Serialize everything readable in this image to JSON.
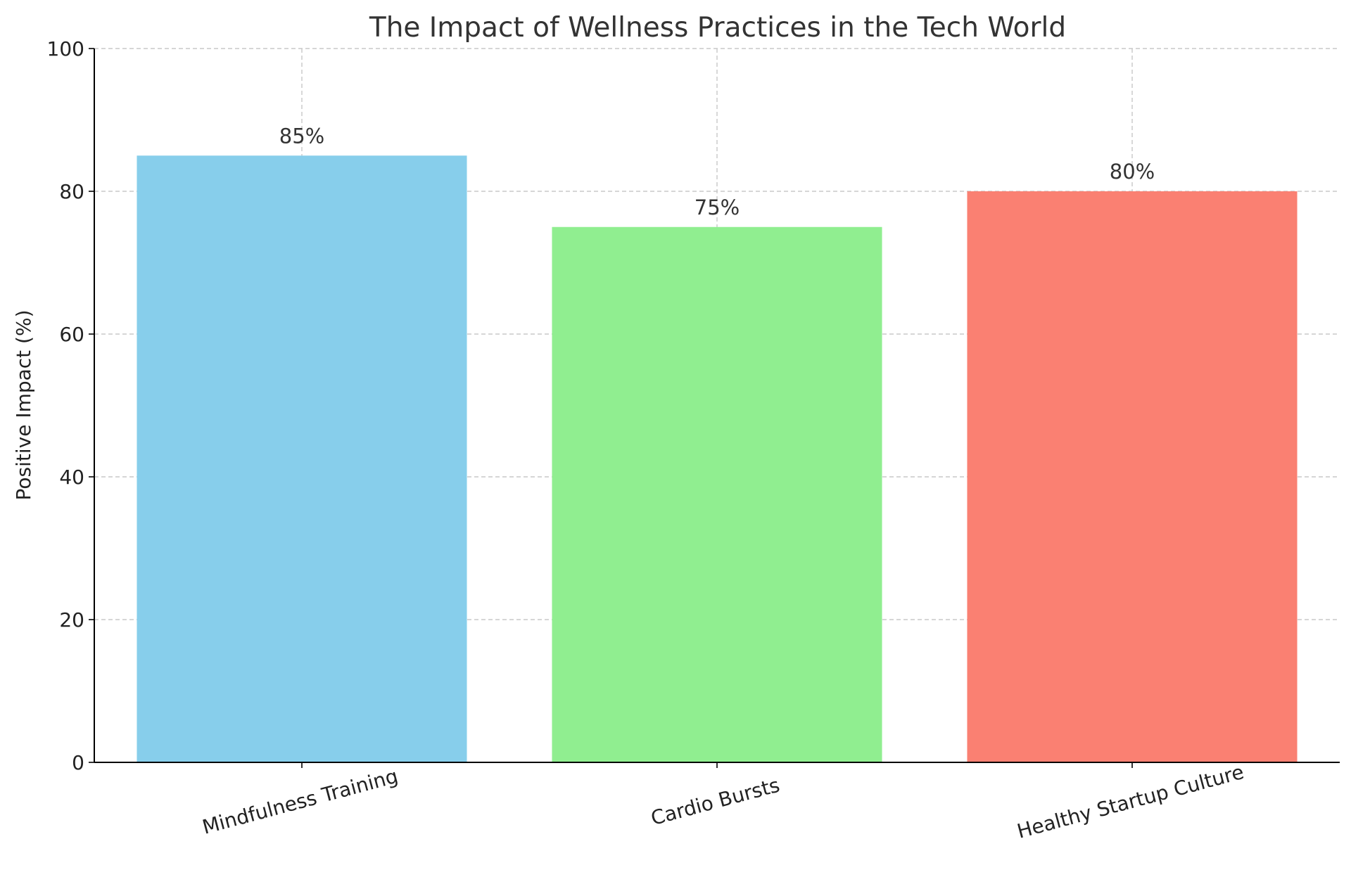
{
  "chart_data": {
    "type": "bar",
    "title": "The Impact of Wellness Practices in the Tech World",
    "xlabel": "",
    "ylabel": "Positive Impact (%)",
    "categories": [
      "Mindfulness Training",
      "Cardio Bursts",
      "Healthy Startup Culture"
    ],
    "values": [
      85,
      75,
      80
    ],
    "data_labels": [
      "85%",
      "75%",
      "80%"
    ],
    "colors": [
      "#87CEEB",
      "#90EE90",
      "#FA8072"
    ],
    "ylim": [
      0,
      100
    ],
    "yticks": [
      0,
      20,
      40,
      60,
      80,
      100
    ],
    "grid": true,
    "legend": "none"
  }
}
